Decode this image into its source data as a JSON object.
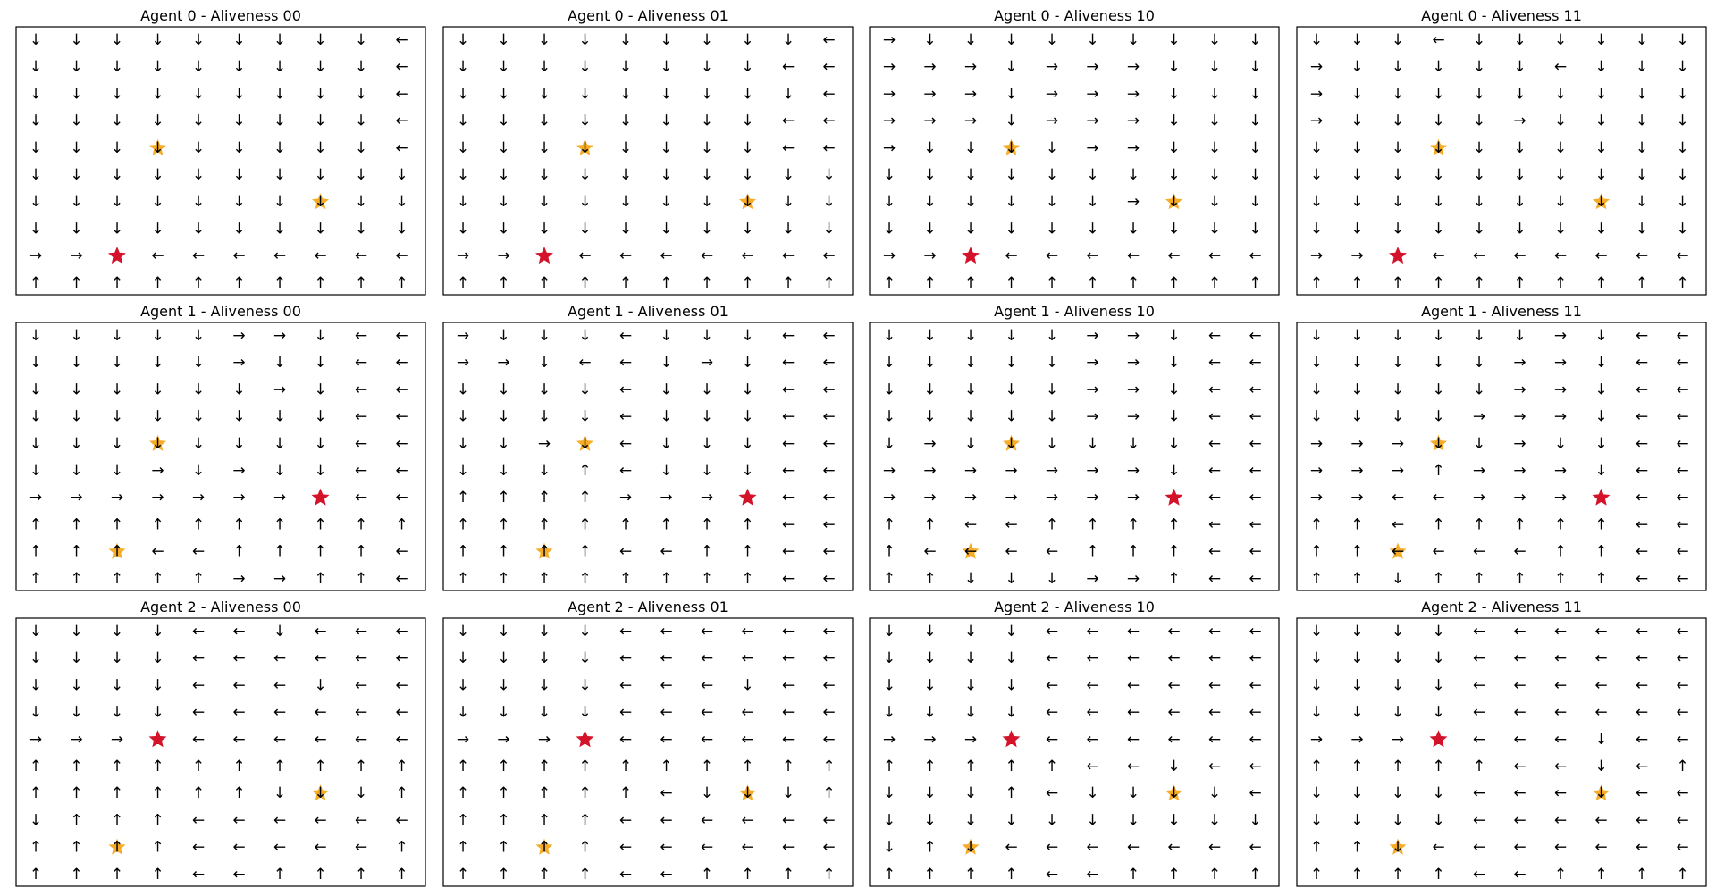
{
  "figure": {
    "rows": 3,
    "cols": 4,
    "grid_size": 10
  },
  "arrow_glyphs": {
    "U": "↑",
    "D": "↓",
    "L": "←",
    "R": "→"
  },
  "colors": {
    "goal_star": "#d4122a",
    "other_star": "#f5a30f",
    "arrow": "#000000"
  },
  "chart_data": [
    {
      "type": "other",
      "title": "Agent 0 - Aliveness 00",
      "goal_star": [
        2,
        8
      ],
      "other_stars": [
        [
          3,
          4
        ],
        [
          7,
          6
        ]
      ],
      "policy": [
        "DDDDDDDDDL",
        "DDDDDDDDDL",
        "DDDDDDDDDL",
        "DDDDDDDDDL",
        "DDDDDDDDDL",
        "DDDDDDDDDD",
        "DDDDDDDDDD",
        "DDDDDDDDDD",
        "RRDLLLLLLL",
        "UUUUUUUUUU"
      ]
    },
    {
      "type": "other",
      "title": "Agent 0 - Aliveness 01",
      "goal_star": [
        2,
        8
      ],
      "other_stars": [
        [
          3,
          4
        ],
        [
          7,
          6
        ]
      ],
      "policy": [
        "DDDDDDDDDL",
        "DDDDDDDDLL",
        "DDDDDDDDDL",
        "DDDDDDDDLL",
        "DDDDDDDDLL",
        "DDDDDDDDDD",
        "DDDDDDDDDD",
        "DDDDDDDDDD",
        "RRDLLLLLLL",
        "UUUUUUUUUU"
      ]
    },
    {
      "type": "other",
      "title": "Agent 0 - Aliveness 10",
      "goal_star": [
        2,
        8
      ],
      "other_stars": [
        [
          3,
          4
        ],
        [
          7,
          6
        ]
      ],
      "policy": [
        "RDDDDDDDDD",
        "RRRDRRRDDD",
        "RRRDRRRDDD",
        "RRRDRRRDDD",
        "RDDDDRRDDD",
        "DDDDDDDDDD",
        "DDDDDDRDDD",
        "DDDDDDDDDD",
        "RRDLLLLLLL",
        "UUUUUUUUUU"
      ]
    },
    {
      "type": "other",
      "title": "Agent 0 - Aliveness 11",
      "goal_star": [
        2,
        8
      ],
      "other_stars": [
        [
          3,
          4
        ],
        [
          7,
          6
        ]
      ],
      "policy": [
        "DDDLDDDDDD",
        "RDDDDDLDDD",
        "RDDDDDDDDD",
        "RDDDDRDDDD",
        "DDDDDDDDDD",
        "DDDDDDDDDD",
        "DDDDDDDDDD",
        "DDDDDDDDDD",
        "RRDLLLLLLL",
        "UUUUUUUUUU"
      ]
    },
    {
      "type": "other",
      "title": "Agent 1 - Aliveness 00",
      "goal_star": [
        7,
        6
      ],
      "other_stars": [
        [
          3,
          4
        ],
        [
          2,
          8
        ]
      ],
      "policy": [
        "DDDDDRRDLL",
        "DDDDDRDDLL",
        "DDDDDDRDLL",
        "DDDDDDDDLL",
        "DDDDDDDDLL",
        "DDDRDRDDLL",
        "RRRRRRRDLL",
        "UUUUUUUUUU",
        "UUULLUUUUL",
        "UUUUURRUUL"
      ]
    },
    {
      "type": "other",
      "title": "Agent 1 - Aliveness 01",
      "goal_star": [
        7,
        6
      ],
      "other_stars": [
        [
          3,
          4
        ],
        [
          2,
          8
        ]
      ],
      "policy": [
        "RDDDLDDDLL",
        "RRDLLDRDLL",
        "DDDDLDDDLL",
        "DDDDLDDDLL",
        "DDRDLDDDLL",
        "DDDULDDDLL",
        "UUUURRRDLL",
        "UUUUUUUULL",
        "UUUULLUULL",
        "UUUUUUUULL"
      ]
    },
    {
      "type": "other",
      "title": "Agent 1 - Aliveness 10",
      "goal_star": [
        7,
        6
      ],
      "other_stars": [
        [
          3,
          4
        ],
        [
          2,
          8
        ]
      ],
      "policy": [
        "DDDDDRRDLL",
        "DDDDDRRDLL",
        "DDDDDRRDLL",
        "DDDDDRRDLL",
        "DRDDDDDDLL",
        "RRRRRRRDLL",
        "RRRRRRRDLL",
        "UULLUUUULL",
        "ULLLLUUULL",
        "UUDDDRRULL"
      ]
    },
    {
      "type": "other",
      "title": "Agent 1 - Aliveness 11",
      "goal_star": [
        7,
        6
      ],
      "other_stars": [
        [
          3,
          4
        ],
        [
          2,
          8
        ]
      ],
      "policy": [
        "DDDDDDRDLL",
        "DDDDDRRDLL",
        "DDDDDRRDLL",
        "DDDDRRRDLL",
        "RRRDDRDDLL",
        "RRRURRRDLL",
        "RRLLRRRDLL",
        "UULUUUUULL",
        "UULLLLUULL",
        "UUDUUUUULL"
      ]
    },
    {
      "type": "other",
      "title": "Agent 2 - Aliveness 00",
      "goal_star": [
        3,
        4
      ],
      "other_stars": [
        [
          7,
          6
        ],
        [
          2,
          8
        ]
      ],
      "policy": [
        "DDDDLLDLLL",
        "DDDDLLLLLL",
        "DDDDLLLDLL",
        "DDDDLLLLLL",
        "RRRDLLLLLL",
        "UUUUUUUUUU",
        "UUUUUUDDDU",
        "DUUULLLLLL",
        "UUUULLLLLU",
        "UUUULLUUUU"
      ]
    },
    {
      "type": "other",
      "title": "Agent 2 - Aliveness 01",
      "goal_star": [
        3,
        4
      ],
      "other_stars": [
        [
          7,
          6
        ],
        [
          2,
          8
        ]
      ],
      "policy": [
        "DDDDLLLLLL",
        "DDDDLLLLLL",
        "DDDDLLLDLL",
        "DDDDLLLLLL",
        "RRRDLLLLLL",
        "UUUUUUUUUU",
        "UUUUULDDDU",
        "UUUULLLLLL",
        "UUUULLLLLL",
        "UUUULLUUUU"
      ]
    },
    {
      "type": "other",
      "title": "Agent 2 - Aliveness 10",
      "goal_star": [
        3,
        4
      ],
      "other_stars": [
        [
          7,
          6
        ],
        [
          2,
          8
        ]
      ],
      "policy": [
        "DDDDLLLLLL",
        "DDDDLLLLLL",
        "DDDDLLLLLL",
        "DDDDLLLLLL",
        "RRRDLLLLLL",
        "UUUUULLDLL",
        "DDDULDDDDL",
        "DDDDDDDDDD",
        "DUDLLLLLLL",
        "UUUULLUUUU"
      ]
    },
    {
      "type": "other",
      "title": "Agent 2 - Aliveness 11",
      "goal_star": [
        3,
        4
      ],
      "other_stars": [
        [
          7,
          6
        ],
        [
          2,
          8
        ]
      ],
      "policy": [
        "DDDDLLLLLL",
        "DDDDLLLLLL",
        "DDDDLLLLLL",
        "DDDDLLLLLL",
        "RRRDLLLDLL",
        "UUUUULLDLU",
        "DDDDLLLDLL",
        "DDDDLLLLLL",
        "UUDLLLLLLL",
        "UUUULLUUUU"
      ]
    }
  ]
}
